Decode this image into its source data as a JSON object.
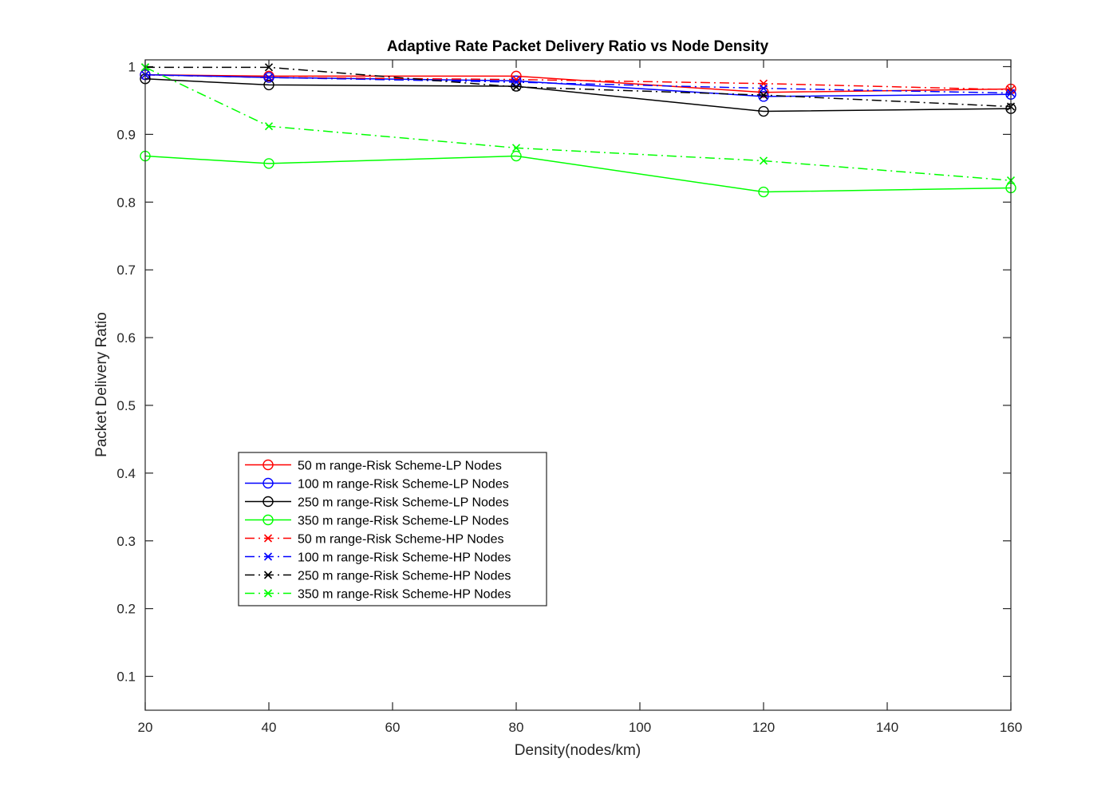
{
  "chart_data": {
    "type": "line",
    "title": "Adaptive Rate Packet Delivery Ratio vs Node Density",
    "xlabel": "Density(nodes/km)",
    "ylabel": "Packet Delivery Ratio",
    "xlim": [
      20,
      160
    ],
    "ylim": [
      0.05,
      1.01
    ],
    "xticks": [
      20,
      40,
      60,
      80,
      100,
      120,
      140,
      160
    ],
    "xtick_labels": [
      "20",
      "40",
      "60",
      "80",
      "100",
      "120",
      "140",
      "160"
    ],
    "yticks": [
      0.1,
      0.2,
      0.3,
      0.4,
      0.5,
      0.6,
      0.7,
      0.8,
      0.9,
      1
    ],
    "ytick_labels": [
      "0.1",
      "0.2",
      "0.3",
      "0.4",
      "0.5",
      "0.6",
      "0.7",
      "0.8",
      "0.9",
      "1"
    ],
    "grid": false,
    "legend_position": "lower-left",
    "x": [
      20,
      40,
      80,
      120,
      160
    ],
    "series": [
      {
        "name": "50 m range-Risk Scheme-LP Nodes",
        "color": "#ff0000",
        "linestyle": "solid",
        "marker": "circle",
        "values": [
          0.988,
          0.986,
          0.986,
          0.962,
          0.967
        ]
      },
      {
        "name": "100 m range-Risk Scheme-LP Nodes",
        "color": "#0000ff",
        "linestyle": "solid",
        "marker": "circle",
        "values": [
          0.988,
          0.984,
          0.979,
          0.956,
          0.959
        ]
      },
      {
        "name": "250 m range-Risk Scheme-LP Nodes",
        "color": "#000000",
        "linestyle": "solid",
        "marker": "circle",
        "values": [
          0.982,
          0.973,
          0.971,
          0.934,
          0.938
        ]
      },
      {
        "name": "350 m range-Risk Scheme-LP Nodes",
        "color": "#00ff00",
        "linestyle": "solid",
        "marker": "circle",
        "values": [
          0.868,
          0.857,
          0.868,
          0.815,
          0.821
        ]
      },
      {
        "name": "50 m range-Risk Scheme-HP Nodes",
        "color": "#ff0000",
        "linestyle": "dashdot",
        "marker": "x",
        "values": [
          0.988,
          0.984,
          0.981,
          0.975,
          0.966
        ]
      },
      {
        "name": "100 m range-Risk Scheme-HP Nodes",
        "color": "#0000ff",
        "linestyle": "dashdot",
        "marker": "x",
        "values": [
          0.988,
          0.984,
          0.977,
          0.968,
          0.961
        ]
      },
      {
        "name": "250 m range-Risk Scheme-HP Nodes",
        "color": "#000000",
        "linestyle": "dashdot",
        "marker": "x",
        "values": [
          0.999,
          0.999,
          0.97,
          0.958,
          0.941
        ]
      },
      {
        "name": "350 m range-Risk Scheme-HP Nodes",
        "color": "#00ff00",
        "linestyle": "dashdot",
        "marker": "x",
        "values": [
          0.999,
          0.912,
          0.88,
          0.861,
          0.832
        ]
      }
    ]
  }
}
